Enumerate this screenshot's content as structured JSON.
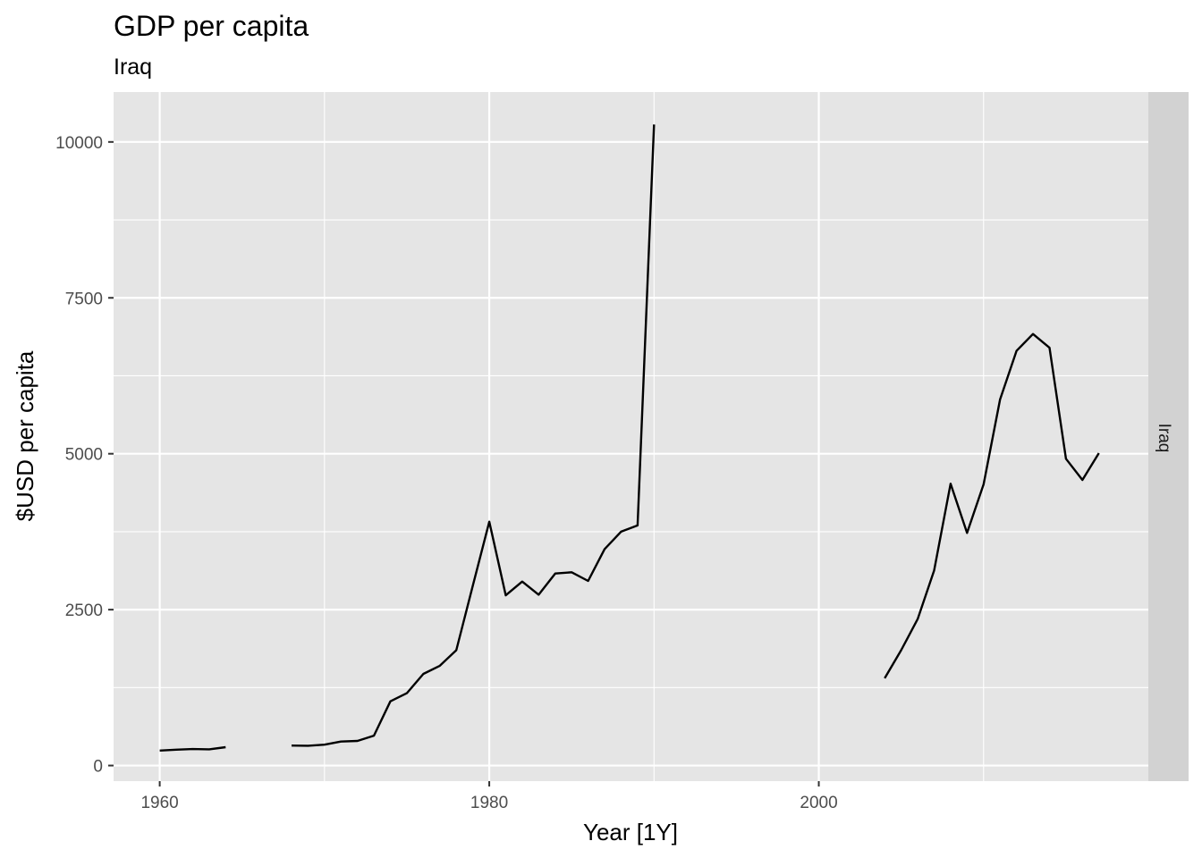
{
  "chart_data": {
    "type": "line",
    "title": "GDP per capita",
    "subtitle": "Iraq",
    "xlabel": "Year [1Y]",
    "ylabel": "$USD per capita",
    "facet_label": "Iraq",
    "xlim": [
      1957.2,
      2020.0
    ],
    "ylim": [
      -250,
      10800
    ],
    "x_ticks": [
      1960,
      1980,
      2000
    ],
    "x_minor_ticks": [
      1970,
      1990,
      2010
    ],
    "y_ticks": [
      0,
      2500,
      5000,
      7500,
      10000
    ],
    "y_minor_ticks": [
      1250,
      3750,
      6250,
      8750
    ],
    "grid": true,
    "colors": {
      "panel_bg": "#e5e5e5",
      "strip_bg": "#d2d2d2",
      "gridline": "#ffffff",
      "line": "#000000",
      "tick_text": "#4d4d4d"
    },
    "series": [
      {
        "segments": [
          [
            [
              1960,
              240
            ],
            [
              1961,
              255
            ],
            [
              1962,
              265
            ],
            [
              1963,
              260
            ],
            [
              1964,
              295
            ]
          ],
          [
            [
              1968,
              320
            ],
            [
              1969,
              318
            ],
            [
              1970,
              335
            ],
            [
              1971,
              385
            ],
            [
              1972,
              395
            ],
            [
              1973,
              480
            ],
            [
              1974,
              1030
            ],
            [
              1975,
              1160
            ],
            [
              1976,
              1470
            ],
            [
              1977,
              1600
            ],
            [
              1978,
              1850
            ],
            [
              1979,
              2880
            ],
            [
              1980,
              3910
            ],
            [
              1981,
              2730
            ],
            [
              1982,
              2950
            ],
            [
              1983,
              2740
            ],
            [
              1984,
              3080
            ],
            [
              1985,
              3100
            ],
            [
              1986,
              2960
            ],
            [
              1987,
              3470
            ],
            [
              1988,
              3750
            ],
            [
              1989,
              3850
            ],
            [
              1990,
              10280
            ]
          ],
          [
            [
              2004,
              1400
            ],
            [
              2005,
              1850
            ],
            [
              2006,
              2350
            ],
            [
              2007,
              3130
            ],
            [
              2008,
              4520
            ],
            [
              2009,
              3730
            ],
            [
              2010,
              4510
            ],
            [
              2011,
              5870
            ],
            [
              2012,
              6650
            ],
            [
              2013,
              6920
            ],
            [
              2014,
              6700
            ],
            [
              2015,
              4920
            ],
            [
              2016,
              4580
            ],
            [
              2017,
              5010
            ]
          ]
        ]
      }
    ]
  }
}
